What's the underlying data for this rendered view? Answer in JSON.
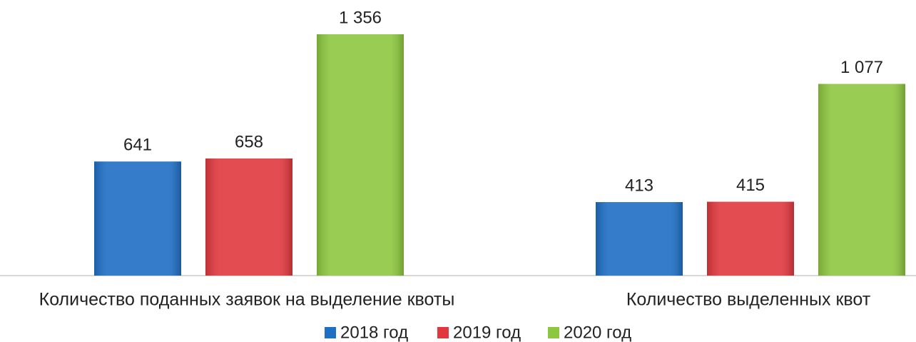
{
  "chart_data": {
    "type": "bar",
    "categories": [
      "Количество поданных заявок на выделение квоты",
      "Количество выделенных квот"
    ],
    "series": [
      {
        "name": "2018 год",
        "color": "#1f6fc5",
        "values": [
          641,
          413
        ],
        "value_labels": [
          "641",
          "413"
        ]
      },
      {
        "name": "2019 год",
        "color": "#e0383e",
        "values": [
          658,
          415
        ],
        "value_labels": [
          "658",
          "415"
        ]
      },
      {
        "name": "2020 год",
        "color": "#8dc63f",
        "values": [
          1356,
          1077
        ],
        "value_labels": [
          "1 356",
          "1 077"
        ]
      }
    ],
    "ylim": [
      0,
      1400
    ]
  }
}
